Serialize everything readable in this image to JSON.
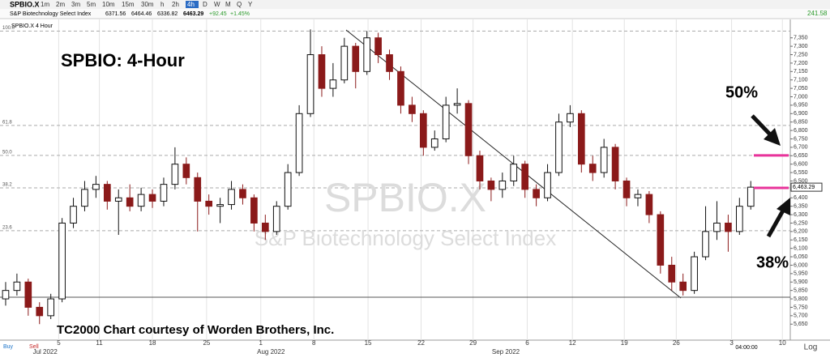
{
  "toolbar": {
    "symbol": "SPBIO.X",
    "intervals": [
      "1m",
      "2m",
      "3m",
      "5m",
      "10m",
      "15m",
      "30m",
      "h",
      "2h",
      "4h",
      "D",
      "W",
      "M",
      "Q",
      "Y"
    ],
    "active_interval": "4h",
    "right_value": "241.58"
  },
  "quote": {
    "name": "S&P Biotechnology Select Index",
    "open": "6371.56",
    "high": "6464.46",
    "low": "6336.82",
    "last": "6463.29",
    "change": "+92.45",
    "change_pct": "+1.45%"
  },
  "pane_label": "SPBIO.X 4 Hour",
  "footer": {
    "buy": "Buy",
    "sell": "Sell",
    "time": "04:00:00",
    "log": "Log"
  },
  "chart_data": {
    "type": "candlestick",
    "title": "SPBIO:  4-Hour",
    "watermark": "SPBIO.X",
    "watermark_subtitle": "S&P Biotechnology Select Index",
    "credit": "TC2000 Chart courtesy of Worden Brothers, Inc.",
    "annotations": [
      "50%",
      "38%"
    ],
    "up_color": "#ffffff",
    "down_color": "#8b1a1a",
    "outline_color": "#111111",
    "highlight_color": "#e8339a",
    "last_price_label": "6,463.29",
    "open": [
      5800,
      5850,
      5900,
      5750,
      5700,
      5800,
      6250,
      6350,
      6450,
      6480,
      6380,
      6400,
      6350,
      6420,
      6380,
      6480,
      6600,
      6520,
      6380,
      6350,
      6360,
      6450,
      6400,
      6250,
      6200,
      6350,
      6550,
      6900,
      7250,
      7050,
      7100,
      7300,
      7150,
      7350,
      7250,
      7150,
      6950,
      6900,
      6700,
      6750,
      6950,
      6960,
      6650,
      6500,
      6450,
      6500,
      6600,
      6450,
      6400,
      6550,
      6850,
      6900,
      6600,
      6550,
      6700,
      6500,
      6400,
      6420,
      6300,
      6000,
      5900,
      5850,
      6050,
      6200,
      6250,
      6200,
      6350
    ],
    "high": [
      5900,
      5950,
      5920,
      5780,
      5830,
      6280,
      6400,
      6500,
      6530,
      6500,
      6450,
      6480,
      6460,
      6450,
      6520,
      6700,
      6640,
      6550,
      6420,
      6400,
      6500,
      6480,
      6420,
      6300,
      6380,
      6600,
      6950,
      7400,
      7300,
      7200,
      7350,
      7320,
      7390,
      7380,
      7280,
      7180,
      7000,
      6920,
      6800,
      7000,
      7050,
      6980,
      6680,
      6520,
      6550,
      6650,
      6620,
      6480,
      6600,
      6900,
      6950,
      6920,
      6650,
      6750,
      6720,
      6520,
      6450,
      6440,
      6320,
      6050,
      5950,
      6080,
      6350,
      6380,
      6300,
      6400,
      6500
    ],
    "low": [
      5760,
      5820,
      5700,
      5650,
      5680,
      5780,
      6220,
      6320,
      6400,
      6330,
      6180,
      6320,
      6320,
      6340,
      6350,
      6450,
      6480,
      6200,
      6300,
      6250,
      6330,
      6360,
      6200,
      6150,
      6180,
      6330,
      6530,
      6880,
      7000,
      7000,
      7080,
      7050,
      7130,
      7200,
      7100,
      6900,
      6850,
      6650,
      6680,
      6730,
      6900,
      6600,
      6450,
      6380,
      6400,
      6470,
      6400,
      6350,
      6380,
      6530,
      6820,
      6550,
      6500,
      6520,
      6450,
      6350,
      6350,
      6250,
      5950,
      5850,
      5820,
      5830,
      6030,
      6150,
      6080,
      6180,
      6330
    ],
    "close": [
      5850,
      5900,
      5750,
      5700,
      5800,
      6250,
      6350,
      6450,
      6480,
      6380,
      6400,
      6350,
      6420,
      6380,
      6480,
      6600,
      6520,
      6380,
      6350,
      6360,
      6450,
      6400,
      6250,
      6200,
      6350,
      6550,
      6900,
      7250,
      7050,
      7100,
      7300,
      7150,
      7350,
      7250,
      7150,
      6950,
      6900,
      6700,
      6750,
      6950,
      6960,
      6650,
      6500,
      6450,
      6500,
      6600,
      6450,
      6400,
      6550,
      6850,
      6900,
      6600,
      6550,
      6700,
      6500,
      6400,
      6420,
      6300,
      6000,
      5900,
      5850,
      6050,
      6200,
      6250,
      6200,
      6350,
      6463.29
    ],
    "xlim": [
      -0.5,
      69.5
    ],
    "xticks": [
      {
        "value": 4.7,
        "label": "5"
      },
      {
        "value": 8.3,
        "label": "11"
      },
      {
        "value": 13.0,
        "label": "18"
      },
      {
        "value": 17.8,
        "label": "25"
      },
      {
        "value": 22.6,
        "label": "1"
      },
      {
        "value": 27.3,
        "label": "8"
      },
      {
        "value": 32.1,
        "label": "15"
      },
      {
        "value": 36.8,
        "label": "22"
      },
      {
        "value": 41.4,
        "label": "29"
      },
      {
        "value": 46.2,
        "label": "6"
      },
      {
        "value": 50.2,
        "label": "12"
      },
      {
        "value": 54.8,
        "label": "19"
      },
      {
        "value": 59.4,
        "label": "26"
      },
      {
        "value": 64.3,
        "label": "3"
      },
      {
        "value": 68.8,
        "label": "10"
      }
    ],
    "month_labels": [
      {
        "value": 3.5,
        "label": "Jul 2022"
      },
      {
        "value": 23.5,
        "label": "Aug 2022"
      },
      {
        "value": 44.3,
        "label": "Sep 2022"
      }
    ],
    "ylim": [
      5555,
      7440
    ],
    "yticks": [
      {
        "value": 5650,
        "label": "5,650"
      },
      {
        "value": 5700,
        "label": "5,700"
      },
      {
        "value": 5750,
        "label": "5,750"
      },
      {
        "value": 5800,
        "label": "5,800"
      },
      {
        "value": 5850,
        "label": "5,850"
      },
      {
        "value": 5900,
        "label": "5,900"
      },
      {
        "value": 5950,
        "label": "5,950"
      },
      {
        "value": 6000,
        "label": "6,000"
      },
      {
        "value": 6050,
        "label": "6,050"
      },
      {
        "value": 6100,
        "label": "6,100"
      },
      {
        "value": 6150,
        "label": "6,150"
      },
      {
        "value": 6200,
        "label": "6,200"
      },
      {
        "value": 6250,
        "label": "6,250"
      },
      {
        "value": 6300,
        "label": "6,300"
      },
      {
        "value": 6350,
        "label": "6,350"
      },
      {
        "value": 6400,
        "label": "6,400"
      },
      {
        "value": 6450,
        "label": "6,450"
      },
      {
        "value": 6500,
        "label": "6,500"
      },
      {
        "value": 6550,
        "label": "6,550"
      },
      {
        "value": 6600,
        "label": "6,600"
      },
      {
        "value": 6650,
        "label": "6,650"
      },
      {
        "value": 6700,
        "label": "6,700"
      },
      {
        "value": 6750,
        "label": "6,750"
      },
      {
        "value": 6800,
        "label": "6,800"
      },
      {
        "value": 6850,
        "label": "6,850"
      },
      {
        "value": 6900,
        "label": "6,900"
      },
      {
        "value": 6950,
        "label": "6,950"
      },
      {
        "value": 7000,
        "label": "7,000"
      },
      {
        "value": 7050,
        "label": "7,050"
      },
      {
        "value": 7100,
        "label": "7,100"
      },
      {
        "value": 7150,
        "label": "7,150"
      },
      {
        "value": 7200,
        "label": "7,200"
      },
      {
        "value": 7250,
        "label": "7,250"
      },
      {
        "value": 7300,
        "label": "7,300"
      },
      {
        "value": 7350,
        "label": "7,350"
      }
    ],
    "fib_levels": [
      {
        "value": 7390,
        "label": "100.0"
      },
      {
        "value": 6830,
        "label": "61.8"
      },
      {
        "value": 6652,
        "label": "50.0"
      },
      {
        "value": 6459,
        "label": "38.2"
      },
      {
        "value": 6205,
        "label": "23.6"
      }
    ],
    "grid": true
  }
}
